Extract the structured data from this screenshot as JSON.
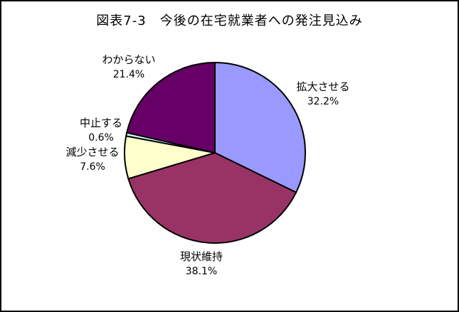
{
  "page": {
    "background": "#FFFFFF",
    "border_color": "#000000"
  },
  "chart_data": {
    "type": "pie",
    "title": "図表7-3　今後の在宅就業者への発注見込み",
    "unit": "%",
    "start_angle_deg": 0,
    "direction": "clockwise",
    "outline_color": "#000000",
    "legend": "none",
    "slices": [
      {
        "label": "拡大させる",
        "value": 32.2,
        "display": "32.2%",
        "color": "#9999FF"
      },
      {
        "label": "現状維持",
        "value": 38.1,
        "display": "38.1%",
        "color": "#993366"
      },
      {
        "label": "減少させる",
        "value": 7.6,
        "display": "7.6%",
        "color": "#FFFFCC"
      },
      {
        "label": "中止する",
        "value": 0.6,
        "display": "0.6%",
        "color": "#CCFFFF"
      },
      {
        "label": "わからない",
        "value": 21.4,
        "display": "21.4%",
        "color": "#660066"
      }
    ]
  }
}
